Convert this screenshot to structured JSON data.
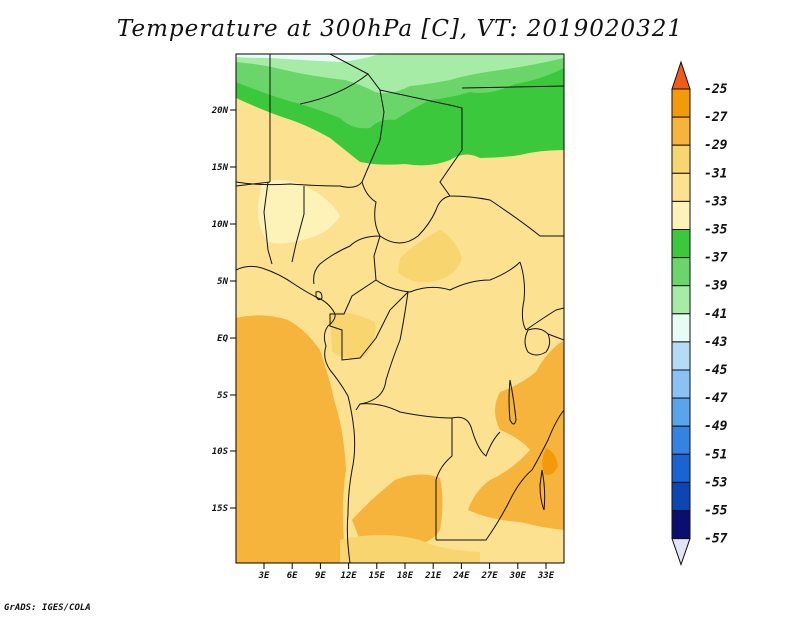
{
  "map": {
    "title": "Temperature at 300hPa [C], VT: 2019020321",
    "footer": "GrADS: IGES/COLA",
    "lat_labels": [
      "20N",
      "15N",
      "10N",
      "5N",
      "EQ",
      "5S",
      "10S",
      "15S"
    ],
    "lon_labels": [
      "3E",
      "6E",
      "9E",
      "12E",
      "15E",
      "18E",
      "21E",
      "24E",
      "27E",
      "30E",
      "33E"
    ]
  },
  "legend": {
    "levels": [
      "-25",
      "-27",
      "-29",
      "-31",
      "-33",
      "-35",
      "-37",
      "-39",
      "-41",
      "-43",
      "-45",
      "-47",
      "-49",
      "-51",
      "-53",
      "-55",
      "-57"
    ],
    "colors": {
      "c_m25": "#f05a1a",
      "c_m27": "#f39a0a",
      "c_m29": "#f6b43c",
      "c_m31": "#f9d56f",
      "c_m33": "#fbe190",
      "c_m35": "#fdf2b8",
      "c_m37": "#3cc83c",
      "c_m39": "#6ad66a",
      "c_m41": "#a6eca6",
      "c_m43": "#e8fcf6",
      "c_m45": "#b4dcf8",
      "c_m47": "#8ac2f2",
      "c_m49": "#5aa4ec",
      "c_m51": "#3482e2",
      "c_m53": "#1a64d2",
      "c_m55": "#0c46b2",
      "c_m57": "#0a0e6e"
    }
  }
}
